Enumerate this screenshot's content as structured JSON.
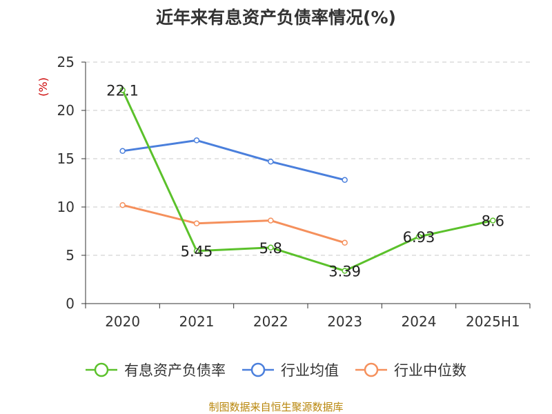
{
  "title": "近年来有息资产负债率情况(%)",
  "source": "制图数据来自恒生聚源数据库",
  "chart_data": {
    "type": "line",
    "categories": [
      "2020",
      "2021",
      "2022",
      "2023",
      "2024",
      "2025H1"
    ],
    "ylabel": "(%)",
    "ylim": [
      0,
      25
    ],
    "yticks": [
      0,
      5,
      10,
      15,
      20,
      25
    ],
    "grid": true,
    "legend_position": "bottom",
    "series": [
      {
        "name": "有息资产负债率",
        "color": "#5bc12b",
        "values": [
          22.1,
          5.45,
          5.8,
          3.39,
          6.93,
          8.6
        ],
        "labels": [
          "22.1",
          "5.45",
          "5.8",
          "3.39",
          "6.93",
          "8.6"
        ]
      },
      {
        "name": "行业均值",
        "color": "#4a7fdc",
        "values": [
          15.8,
          16.9,
          14.7,
          12.8,
          null,
          null
        ]
      },
      {
        "name": "行业中位数",
        "color": "#f5905c",
        "values": [
          10.2,
          8.3,
          8.6,
          6.3,
          null,
          null
        ]
      }
    ]
  }
}
